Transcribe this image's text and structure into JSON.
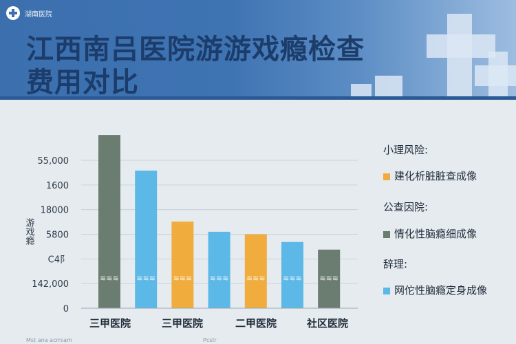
{
  "header": {
    "logo_text": "湖南医院",
    "title_line1": "江西南吕医院游游戏瘾检查",
    "title_line2": "费用对比"
  },
  "chart_data": {
    "type": "bar",
    "title": "江西南吕医院游游戏瘾检查费用对比",
    "ylabel": "游戏瘾",
    "y_tick_labels": [
      "0",
      "142,000",
      "C4阝",
      "5800",
      "18000",
      "1600",
      "55,000"
    ],
    "x_tick_labels": [
      "三甲医院",
      "三甲医院",
      "二甲医院",
      "社区医院"
    ],
    "bars": [
      {
        "color": "#6b7c70",
        "value": 6.8,
        "label": "≋≋≋"
      },
      {
        "color": "#5cb8e6",
        "value": 5.4,
        "label": "≋≋≋"
      },
      {
        "color": "#f0ac3c",
        "value": 3.4,
        "label": "≋≋≋"
      },
      {
        "color": "#5cb8e6",
        "value": 3.0,
        "label": "≋≋≋"
      },
      {
        "color": "#f0ac3c",
        "value": 2.9,
        "label": "≋≋≋"
      },
      {
        "color": "#5cb8e6",
        "value": 2.6,
        "label": "≋≋≋"
      },
      {
        "color": "#6b7c70",
        "value": 2.3,
        "label": "≋≋≋"
      }
    ],
    "ylim": [
      0,
      7.1
    ],
    "grid": true,
    "legend_position": "right",
    "legend": [
      {
        "heading": "小理风险:",
        "entry": "建化析脏脏查成像",
        "color": "#f0ac3c"
      },
      {
        "heading": "公查因院:",
        "entry": "情化性脑瘾细成像",
        "color": "#6b7c70"
      },
      {
        "heading": "辞理:",
        "entry": "网佗性脑瘾定身成像",
        "color": "#5cb8e6"
      }
    ]
  },
  "footer": {
    "left": "Mst ana acrrsam",
    "mid": "Pcstr"
  }
}
